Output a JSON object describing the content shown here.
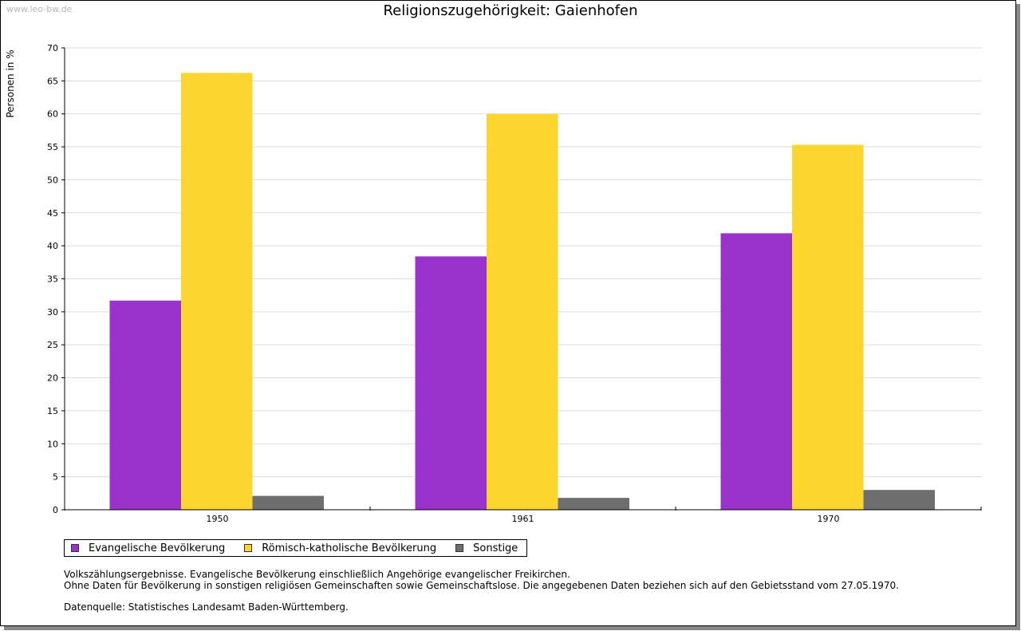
{
  "watermark": "www.leo-bw.de",
  "colors": {
    "evangelisch": "#9933cc",
    "katholisch": "#fcd52e",
    "sonstige": "#6e6e6e"
  },
  "chart_data": {
    "type": "bar",
    "title": "Religionszugehörigkeit: Gaienhofen",
    "xlabel": "",
    "ylabel": "Personen in %",
    "categories": [
      "1950",
      "1961",
      "1970"
    ],
    "ylim": [
      0,
      70
    ],
    "yticks": [
      0,
      5,
      10,
      15,
      20,
      25,
      30,
      35,
      40,
      45,
      50,
      55,
      60,
      65,
      70
    ],
    "grid": true,
    "legend_position": "bottom-left",
    "series": [
      {
        "name": "Evangelische Bevölkerung",
        "values": [
          31.7,
          38.4,
          41.9
        ]
      },
      {
        "name": "Römisch-katholische Bevölkerung",
        "values": [
          66.2,
          60.0,
          55.3
        ]
      },
      {
        "name": "Sonstige",
        "values": [
          2.1,
          1.8,
          3.0
        ]
      }
    ]
  },
  "notes": {
    "line1": "Volkszählungsergebnisse. Evangelische Bevölkerung einschließlich Angehörige evangelischer Freikirchen.",
    "line2": "Ohne Daten für Bevölkerung in sonstigen religiösen Gemeinschaften sowie Gemeinschaftslose. Die angegebenen Daten beziehen sich auf den Gebietsstand vom 27.05.1970.",
    "source": "Datenquelle: Statistisches Landesamt Baden-Württemberg."
  }
}
